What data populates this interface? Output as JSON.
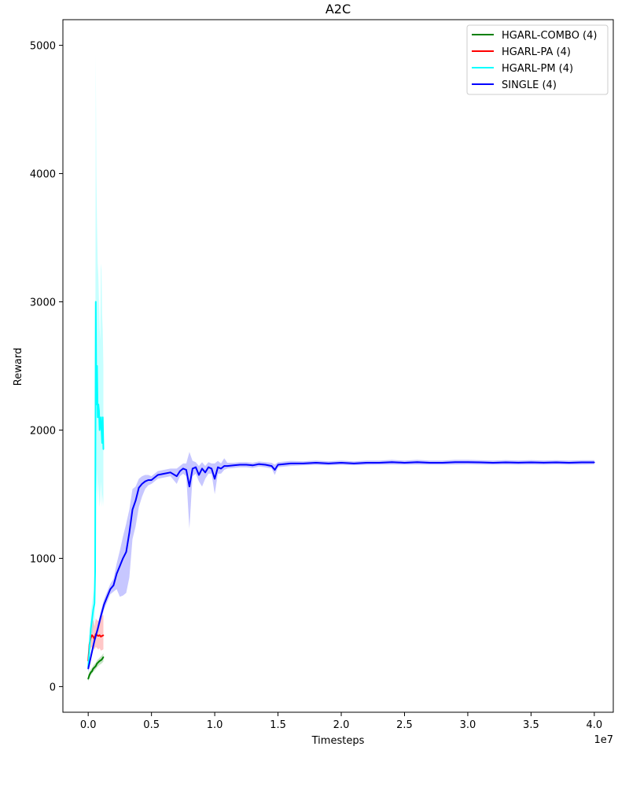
{
  "chart_data": {
    "type": "line",
    "title": "A2C",
    "xlabel": "Timesteps",
    "ylabel": "Reward",
    "x_offset_label": "1e7",
    "xlim": [
      -2000000,
      41500000
    ],
    "ylim": [
      -200,
      5200
    ],
    "x_ticks": [
      0,
      5000000,
      10000000,
      15000000,
      20000000,
      25000000,
      30000000,
      35000000,
      40000000
    ],
    "x_tick_labels": [
      "0.0",
      "0.5",
      "1.0",
      "1.5",
      "2.0",
      "2.5",
      "3.0",
      "3.5",
      "4.0"
    ],
    "y_ticks": [
      0,
      1000,
      2000,
      3000,
      4000,
      5000
    ],
    "y_tick_labels": [
      "0",
      "1000",
      "2000",
      "3000",
      "4000",
      "5000"
    ],
    "grid": false,
    "legend_position": "top-right",
    "series": [
      {
        "name": "HGARL-COMBO (4)",
        "color": "#008000",
        "x": [
          0,
          100000,
          200000,
          300000,
          400000,
          500000,
          600000,
          700000,
          800000,
          900000,
          1000000,
          1100000,
          1200000
        ],
        "y": [
          60,
          90,
          110,
          120,
          140,
          150,
          160,
          180,
          190,
          200,
          205,
          215,
          230
        ],
        "lower": [
          40,
          70,
          90,
          100,
          115,
          125,
          135,
          150,
          160,
          170,
          175,
          185,
          195
        ],
        "upper": [
          90,
          115,
          135,
          145,
          165,
          175,
          185,
          205,
          215,
          225,
          235,
          245,
          260
        ]
      },
      {
        "name": "HGARL-PA (4)",
        "color": "#ff0000",
        "x": [
          0,
          100000,
          200000,
          300000,
          400000,
          500000,
          600000,
          700000,
          800000,
          900000,
          1000000,
          1100000,
          1200000
        ],
        "y": [
          200,
          330,
          380,
          400,
          390,
          370,
          410,
          400,
          395,
          400,
          390,
          395,
          400
        ],
        "lower": [
          150,
          270,
          300,
          310,
          300,
          290,
          310,
          300,
          290,
          300,
          280,
          285,
          290
        ],
        "upper": [
          250,
          400,
          460,
          500,
          520,
          470,
          530,
          520,
          510,
          540,
          560,
          550,
          560
        ]
      },
      {
        "name": "HGARL-PM (4)",
        "color": "#00ffff",
        "x": [
          0,
          100000,
          200000,
          300000,
          400000,
          500000,
          550000,
          600000,
          650000,
          700000,
          750000,
          800000,
          850000,
          900000,
          950000,
          1000000,
          1050000,
          1100000,
          1150000,
          1200000
        ],
        "y": [
          150,
          300,
          450,
          520,
          600,
          650,
          900,
          3000,
          2200,
          2500,
          2100,
          2200,
          2150,
          2000,
          2050,
          2100,
          2000,
          1900,
          2100,
          1850
        ],
        "lower": [
          100,
          220,
          350,
          400,
          450,
          500,
          650,
          1800,
          1500,
          1700,
          1400,
          1600,
          1500,
          1400,
          1450,
          1600,
          1500,
          1400,
          1500,
          1400
        ],
        "upper": [
          200,
          380,
          560,
          650,
          720,
          780,
          1300,
          4930,
          3980,
          3600,
          3300,
          3200,
          3000,
          2800,
          2700,
          3300,
          3250,
          2900,
          2780,
          2500
        ]
      },
      {
        "name": "SINGLE (4)",
        "color": "#0000ff",
        "x": [
          0,
          250000,
          500000,
          750000,
          1000000,
          1250000,
          1500000,
          1750000,
          2000000,
          2250000,
          2500000,
          2750000,
          3000000,
          3250000,
          3500000,
          3750000,
          4000000,
          4250000,
          4500000,
          4750000,
          5000000,
          5500000,
          6000000,
          6500000,
          7000000,
          7250000,
          7500000,
          7750000,
          8000000,
          8250000,
          8500000,
          8750000,
          9000000,
          9250000,
          9500000,
          9750000,
          10000000,
          10250000,
          10500000,
          10750000,
          11000000,
          11500000,
          12000000,
          12500000,
          13000000,
          13500000,
          14000000,
          14500000,
          14750000,
          15000000,
          16000000,
          17000000,
          18000000,
          19000000,
          20000000,
          21000000,
          22000000,
          23000000,
          24000000,
          25000000,
          26000000,
          27000000,
          28000000,
          29000000,
          30000000,
          31000000,
          32000000,
          33000000,
          34000000,
          35000000,
          36000000,
          37000000,
          38000000,
          39000000,
          40000000
        ],
        "y": [
          140,
          250,
          360,
          450,
          550,
          640,
          700,
          760,
          790,
          880,
          940,
          1000,
          1050,
          1200,
          1380,
          1450,
          1550,
          1580,
          1600,
          1610,
          1610,
          1650,
          1660,
          1670,
          1640,
          1680,
          1700,
          1690,
          1560,
          1700,
          1710,
          1650,
          1700,
          1670,
          1710,
          1700,
          1620,
          1710,
          1700,
          1720,
          1720,
          1725,
          1730,
          1730,
          1725,
          1735,
          1730,
          1720,
          1690,
          1730,
          1740,
          1740,
          1745,
          1740,
          1745,
          1740,
          1745,
          1745,
          1750,
          1745,
          1750,
          1745,
          1745,
          1750,
          1750,
          1748,
          1745,
          1748,
          1746,
          1748,
          1746,
          1748,
          1745,
          1748,
          1748
        ],
        "lower": [
          110,
          220,
          330,
          420,
          510,
          600,
          660,
          720,
          740,
          760,
          700,
          710,
          730,
          850,
          1150,
          1250,
          1400,
          1480,
          1540,
          1570,
          1580,
          1620,
          1630,
          1640,
          1580,
          1640,
          1660,
          1640,
          1230,
          1640,
          1660,
          1600,
          1560,
          1620,
          1660,
          1660,
          1500,
          1660,
          1660,
          1690,
          1700,
          1705,
          1710,
          1710,
          1705,
          1715,
          1710,
          1700,
          1650,
          1710,
          1720,
          1725,
          1728,
          1725,
          1728,
          1726,
          1728,
          1730,
          1732,
          1730,
          1732,
          1730,
          1730,
          1732,
          1733,
          1731,
          1730,
          1732,
          1730,
          1732,
          1730,
          1733,
          1730,
          1732,
          1733
        ],
        "upper": [
          170,
          280,
          390,
          480,
          590,
          680,
          740,
          800,
          840,
          960,
          1060,
          1170,
          1270,
          1380,
          1540,
          1560,
          1620,
          1640,
          1650,
          1650,
          1640,
          1680,
          1690,
          1700,
          1700,
          1720,
          1740,
          1740,
          1830,
          1760,
          1750,
          1720,
          1750,
          1720,
          1750,
          1740,
          1740,
          1760,
          1740,
          1780,
          1745,
          1745,
          1750,
          1750,
          1745,
          1755,
          1750,
          1745,
          1730,
          1750,
          1760,
          1757,
          1762,
          1757,
          1762,
          1756,
          1762,
          1762,
          1768,
          1762,
          1768,
          1762,
          1762,
          1768,
          1768,
          1765,
          1762,
          1766,
          1763,
          1766,
          1763,
          1765,
          1762,
          1765,
          1765
        ]
      }
    ]
  }
}
